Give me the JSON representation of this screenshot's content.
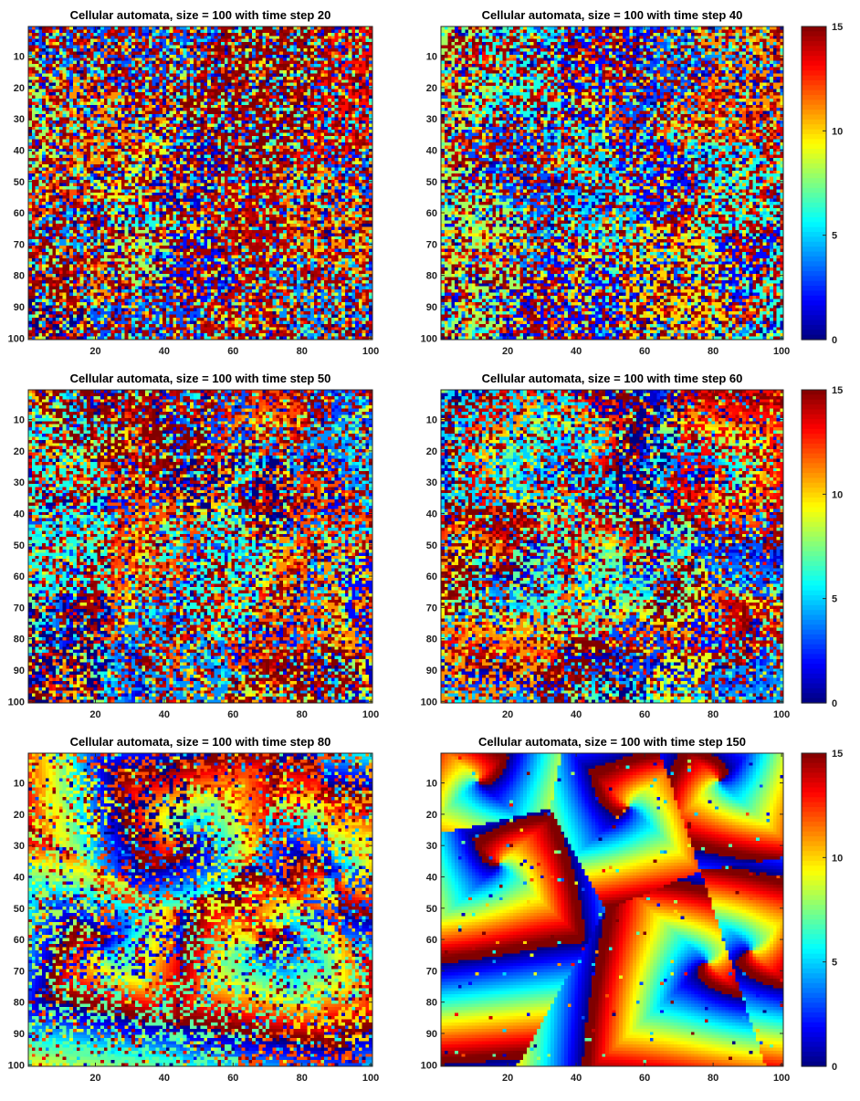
{
  "chart_data": [
    {
      "type": "heatmap",
      "title": "Cellular automata, size = 100 with time step 20",
      "time_step": 20,
      "grid_size": 100,
      "xlim": [
        1,
        100
      ],
      "ylim": [
        1,
        100
      ],
      "y_reversed": true,
      "xticks": [
        20,
        40,
        60,
        80,
        100
      ],
      "yticks": [
        10,
        20,
        30,
        40,
        50,
        60,
        70,
        80,
        90,
        100
      ],
      "clim": [
        0,
        15
      ],
      "colormap": "jet",
      "colorbar": false,
      "pattern": "noisy random patches, no spirals"
    },
    {
      "type": "heatmap",
      "title": "Cellular automata, size = 100 with time step 40",
      "time_step": 40,
      "grid_size": 100,
      "xlim": [
        1,
        100
      ],
      "ylim": [
        1,
        100
      ],
      "y_reversed": true,
      "xticks": [
        20,
        40,
        60,
        80,
        100
      ],
      "yticks": [
        10,
        20,
        30,
        40,
        50,
        60,
        70,
        80,
        90,
        100
      ],
      "clim": [
        0,
        15
      ],
      "colormap": "jet",
      "colorbar": true,
      "colorbar_ticks": [
        0,
        5,
        10,
        15
      ],
      "pattern": "large uniform regions with first wavefronts"
    },
    {
      "type": "heatmap",
      "title": "Cellular automata, size = 100 with time step 50",
      "time_step": 50,
      "grid_size": 100,
      "xlim": [
        1,
        100
      ],
      "ylim": [
        1,
        100
      ],
      "y_reversed": true,
      "xticks": [
        20,
        40,
        60,
        80,
        100
      ],
      "yticks": [
        10,
        20,
        30,
        40,
        50,
        60,
        70,
        80,
        90,
        100
      ],
      "clim": [
        0,
        15
      ],
      "colormap": "jet",
      "colorbar": false,
      "pattern": "emerging spiral waves"
    },
    {
      "type": "heatmap",
      "title": "Cellular automata, size = 100 with time step 60",
      "time_step": 60,
      "grid_size": 100,
      "xlim": [
        1,
        100
      ],
      "ylim": [
        1,
        100
      ],
      "y_reversed": true,
      "xticks": [
        20,
        40,
        60,
        80,
        100
      ],
      "yticks": [
        10,
        20,
        30,
        40,
        50,
        60,
        70,
        80,
        90,
        100
      ],
      "clim": [
        0,
        15
      ],
      "colormap": "jet",
      "colorbar": true,
      "colorbar_ticks": [
        0,
        5,
        10,
        15
      ],
      "pattern": "spirals growing"
    },
    {
      "type": "heatmap",
      "title": "Cellular automata, size = 100 with time step 80",
      "time_step": 80,
      "grid_size": 100,
      "xlim": [
        1,
        100
      ],
      "ylim": [
        1,
        100
      ],
      "y_reversed": true,
      "xticks": [
        20,
        40,
        60,
        80,
        100
      ],
      "yticks": [
        10,
        20,
        30,
        40,
        50,
        60,
        70,
        80,
        90,
        100
      ],
      "clim": [
        0,
        15
      ],
      "colormap": "jet",
      "colorbar": false,
      "pattern": "square spiral waves fill most of grid"
    },
    {
      "type": "heatmap",
      "title": "Cellular automata, size = 100 with time step 150",
      "time_step": 150,
      "grid_size": 100,
      "xlim": [
        1,
        100
      ],
      "ylim": [
        1,
        100
      ],
      "y_reversed": true,
      "xticks": [
        20,
        40,
        60,
        80,
        100
      ],
      "yticks": [
        10,
        20,
        30,
        40,
        50,
        60,
        70,
        80,
        90,
        100
      ],
      "clim": [
        0,
        15
      ],
      "colormap": "jet",
      "colorbar": true,
      "colorbar_ticks": [
        0,
        5,
        10,
        15
      ],
      "pattern": "fully developed square spirals"
    }
  ]
}
